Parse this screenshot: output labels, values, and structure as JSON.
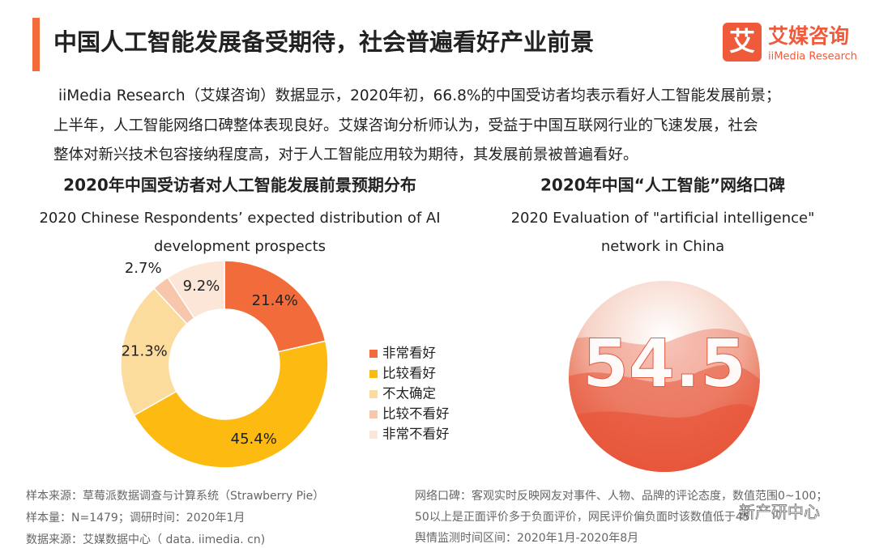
{
  "header": {
    "title": "中国人工智能发展备受期待，社会普遍看好产业前景",
    "logo": "艾媒咨询",
    "logo_sub": "iiMedia Research",
    "logo_icon": "艾"
  },
  "description": [
    "iiMedia Research（艾媒咨询）数据显示，2020年初，66.8%的中国受访者均表示看好人工智能发展前景；",
    "上半年，人工智能网络口碑整体表现良好。艾媒咨询分析师认为，受益于中国互联网行业的飞速发展，社会",
    "整体对新兴技术包容接纳程度高，对于人工智能应用较为期待，其发展前景被普遍看好。"
  ],
  "chart_data": [
    {
      "type": "donut",
      "title": "2020年中国受访者对人工智能发展前景预期分布",
      "subtitle": [
        "2020 Chinese Respondents’ expected distribution of AI",
        "development prospects"
      ],
      "categories": [
        "非常看好",
        "比较看好",
        "不太确定",
        "比较不看好",
        "非常不看好"
      ],
      "values": [
        21.4,
        45.4,
        21.3,
        2.7,
        9.2
      ],
      "value_labels": [
        "21.4%",
        "45.4%",
        "21.3%",
        "2.7%",
        "9.2%"
      ],
      "colors": [
        "#f26b3a",
        "#fdbb12",
        "#fcdc9c",
        "#f8c6ab",
        "#fce6d8"
      ],
      "legend": "right",
      "notes": [
        "样本来源：草莓派数据调查与计算系统（Strawberry Pie）",
        "样本量：N=1479；调研时间：2020年1月",
        "数据来源：艾媒数据中心（ data. iimedia. cn)"
      ]
    },
    {
      "type": "score",
      "title": "2020年中国“人工智能”网络口碑",
      "subtitle": [
        "2020 Evaluation of \"artificial intelligence\"",
        "network in China"
      ],
      "value": 54.5,
      "color": "#e8553a",
      "notes": [
        "网络口碑：客观实时反映网友对事件、人物、品牌的评论态度，数值范围0~100；",
        "50以上是正面评价多于负面评价，网民评价偏负面时该数值低于45",
        "舆情监测时间区间：2020年1月-2020年8月"
      ]
    }
  ],
  "watermark": "新产研中心"
}
